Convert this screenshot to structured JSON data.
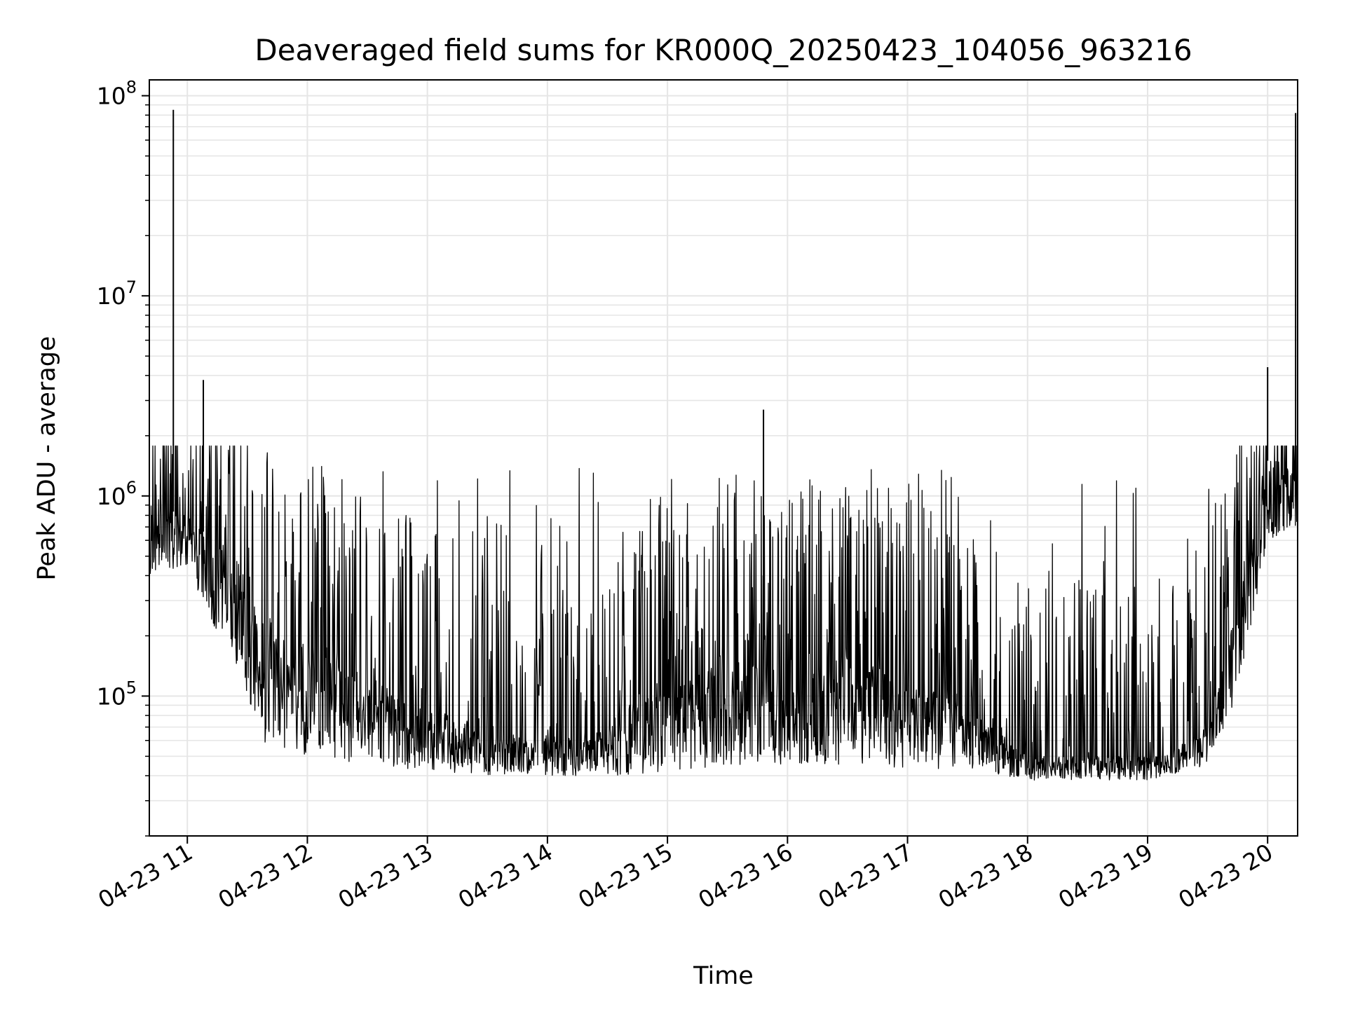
{
  "chart_data": {
    "type": "line",
    "title": "Deaveraged field sums for KR000Q_20250423_104056_963216",
    "xlabel": "Time",
    "ylabel": "Peak ADU - average",
    "yscale": "log",
    "ylim": [
      20000,
      120000000
    ],
    "xlim": [
      "2025-04-23 10:41",
      "2025-04-23 20:15"
    ],
    "grid": true,
    "line_color": "#000000",
    "x_ticks": [
      {
        "time": "2025-04-23 11:00",
        "label": "04-23 11"
      },
      {
        "time": "2025-04-23 12:00",
        "label": "04-23 12"
      },
      {
        "time": "2025-04-23 13:00",
        "label": "04-23 13"
      },
      {
        "time": "2025-04-23 14:00",
        "label": "04-23 14"
      },
      {
        "time": "2025-04-23 15:00",
        "label": "04-23 15"
      },
      {
        "time": "2025-04-23 16:00",
        "label": "04-23 16"
      },
      {
        "time": "2025-04-23 17:00",
        "label": "04-23 17"
      },
      {
        "time": "2025-04-23 18:00",
        "label": "04-23 18"
      },
      {
        "time": "2025-04-23 19:00",
        "label": "04-23 19"
      },
      {
        "time": "2025-04-23 20:00",
        "label": "04-23 20"
      }
    ],
    "y_ticks": [
      {
        "value": 100000,
        "base": "10",
        "exp": "5"
      },
      {
        "value": 1000000,
        "base": "10",
        "exp": "6"
      },
      {
        "value": 10000000,
        "base": "10",
        "exp": "7"
      },
      {
        "value": 100000000,
        "base": "10",
        "exp": "8"
      }
    ],
    "envelope": [
      {
        "time": "2025-04-23 10:41",
        "floor": 400000,
        "base": 900000
      },
      {
        "time": "2025-04-23 11:00",
        "floor": 450000,
        "base": 800000
      },
      {
        "time": "2025-04-23 11:20",
        "floor": 150000,
        "base": 500000
      },
      {
        "time": "2025-04-23 11:40",
        "floor": 55000,
        "base": 250000
      },
      {
        "time": "2025-04-23 12:30",
        "floor": 45000,
        "base": 120000
      },
      {
        "time": "2025-04-23 13:30",
        "floor": 40000,
        "base": 70000
      },
      {
        "time": "2025-04-23 14:20",
        "floor": 40000,
        "base": 60000
      },
      {
        "time": "2025-04-23 14:40",
        "floor": 40000,
        "base": 90000
      },
      {
        "time": "2025-04-23 15:30",
        "floor": 45000,
        "base": 150000
      },
      {
        "time": "2025-04-23 16:30",
        "floor": 45000,
        "base": 160000
      },
      {
        "time": "2025-04-23 17:30",
        "floor": 42000,
        "base": 90000
      },
      {
        "time": "2025-04-23 18:00",
        "floor": 38000,
        "base": 50000
      },
      {
        "time": "2025-04-23 19:00",
        "floor": 38000,
        "base": 45000
      },
      {
        "time": "2025-04-23 19:30",
        "floor": 45000,
        "base": 70000
      },
      {
        "time": "2025-04-23 19:45",
        "floor": 100000,
        "base": 300000
      },
      {
        "time": "2025-04-23 20:00",
        "floor": 600000,
        "base": 1500000
      },
      {
        "time": "2025-04-23 20:15",
        "floor": 700000,
        "base": 1500000
      }
    ],
    "spikes": [
      {
        "time": "2025-04-23 10:53",
        "value": 85000000
      },
      {
        "time": "2025-04-23 11:08",
        "value": 3800000
      },
      {
        "time": "2025-04-23 15:48",
        "value": 2700000
      },
      {
        "time": "2025-04-23 20:00",
        "value": 4400000
      },
      {
        "time": "2025-04-23 20:14",
        "value": 82000000
      }
    ]
  }
}
